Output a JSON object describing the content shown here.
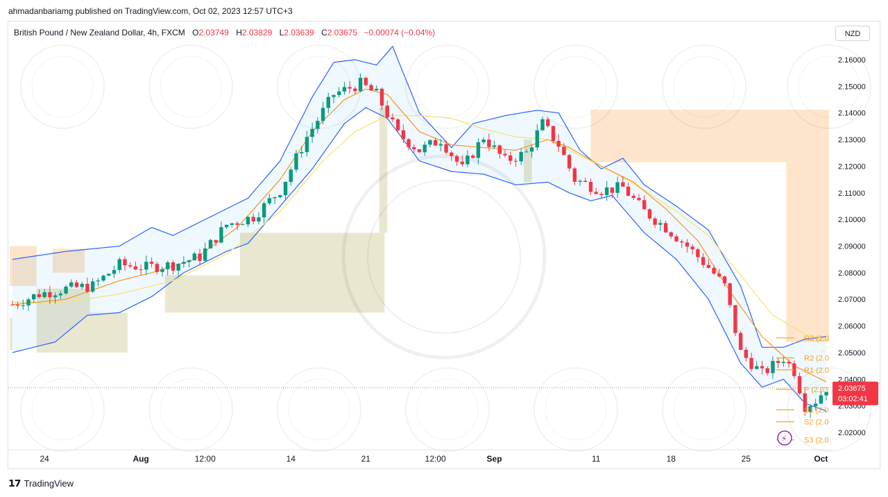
{
  "attribution": "ahmadanbariamg published on TradingView.com, Oct 02, 2023 12:57 UTC+3",
  "legend": {
    "symbol": "British Pound / New Zealand Dollar, 4h, FXCM",
    "o_label": "O",
    "o_value": "2.03749",
    "h_label": "H",
    "h_value": "2.03829",
    "l_label": "L",
    "l_value": "2.03639",
    "c_label": "C",
    "c_value": "2.03675",
    "change": "−0.00074 (−0.04%)"
  },
  "currency_button": "NZD",
  "footer": {
    "brand": "TradingView"
  },
  "colors": {
    "up": "#089981",
    "down": "#f23645",
    "band": "#2962ff",
    "ema": "#f7941d",
    "sma": "#f6e27a",
    "pivot": "#f7a21b",
    "zone_orange": "#fde0c2",
    "zone_olive": "#e5e3c8"
  },
  "price_tag": {
    "price": "2.03675",
    "countdown": "03:02:41"
  },
  "chart_data": {
    "type": "candlestick",
    "title": "British Pound / New Zealand Dollar, 4h, FXCM",
    "ylim": [
      2.012,
      2.168
    ],
    "y_ticks": [
      2.16,
      2.15,
      2.14,
      2.13,
      2.12,
      2.11,
      2.1,
      2.09,
      2.08,
      2.07,
      2.06,
      2.05,
      2.04,
      2.03,
      2.02
    ],
    "y_tick_labels": [
      "2.16000",
      "2.15000",
      "2.14000",
      "2.13000",
      "2.12000",
      "2.11000",
      "2.10000",
      "2.09000",
      "2.08000",
      "2.07000",
      "2.06000",
      "2.05000",
      "2.04000",
      "2.03000",
      "2.02000"
    ],
    "x_ticks": [
      {
        "label": "24",
        "i": 6
      },
      {
        "label": "Aug",
        "i": 24,
        "bold": true
      },
      {
        "label": "12:00",
        "i": 36
      },
      {
        "label": "14",
        "i": 52
      },
      {
        "label": "21",
        "i": 66
      },
      {
        "label": "12:00",
        "i": 79
      },
      {
        "label": "Sep",
        "i": 90,
        "bold": true
      },
      {
        "label": "11",
        "i": 109
      },
      {
        "label": "18",
        "i": 123
      },
      {
        "label": "25",
        "i": 137
      },
      {
        "label": "Oct",
        "i": 151,
        "bold": true
      }
    ],
    "price_path": [
      [
        0,
        2.068
      ],
      [
        5,
        2.072
      ],
      [
        10,
        2.074
      ],
      [
        15,
        2.075
      ],
      [
        20,
        2.083
      ],
      [
        25,
        2.082
      ],
      [
        30,
        2.083
      ],
      [
        35,
        2.086
      ],
      [
        40,
        2.098
      ],
      [
        45,
        2.101
      ],
      [
        50,
        2.111
      ],
      [
        55,
        2.131
      ],
      [
        60,
        2.147
      ],
      [
        65,
        2.151
      ],
      [
        68,
        2.147
      ],
      [
        72,
        2.132
      ],
      [
        76,
        2.126
      ],
      [
        80,
        2.13
      ],
      [
        84,
        2.119
      ],
      [
        88,
        2.131
      ],
      [
        92,
        2.122
      ],
      [
        96,
        2.125
      ],
      [
        99,
        2.136
      ],
      [
        102,
        2.128
      ],
      [
        105,
        2.115
      ],
      [
        110,
        2.111
      ],
      [
        114,
        2.112
      ],
      [
        118,
        2.103
      ],
      [
        122,
        2.097
      ],
      [
        126,
        2.09
      ],
      [
        130,
        2.082
      ],
      [
        133,
        2.075
      ],
      [
        136,
        2.05
      ],
      [
        140,
        2.042
      ],
      [
        144,
        2.048
      ],
      [
        146,
        2.043
      ],
      [
        148,
        2.03
      ],
      [
        150,
        2.032
      ],
      [
        152,
        2.0368
      ]
    ],
    "bollinger": {
      "upper": [
        [
          0,
          2.085
        ],
        [
          10,
          2.088
        ],
        [
          20,
          2.09
        ],
        [
          26,
          2.097
        ],
        [
          30,
          2.094
        ],
        [
          36,
          2.1
        ],
        [
          44,
          2.108
        ],
        [
          50,
          2.122
        ],
        [
          56,
          2.146
        ],
        [
          60,
          2.159
        ],
        [
          64,
          2.16
        ],
        [
          68,
          2.158
        ],
        [
          71,
          2.165
        ],
        [
          76,
          2.14
        ],
        [
          82,
          2.127
        ],
        [
          86,
          2.136
        ],
        [
          92,
          2.139
        ],
        [
          98,
          2.141
        ],
        [
          102,
          2.14
        ],
        [
          106,
          2.126
        ],
        [
          110,
          2.119
        ],
        [
          114,
          2.123
        ],
        [
          118,
          2.113
        ],
        [
          124,
          2.105
        ],
        [
          130,
          2.096
        ],
        [
          136,
          2.075
        ],
        [
          140,
          2.052
        ],
        [
          144,
          2.052
        ],
        [
          148,
          2.055
        ],
        [
          152,
          2.056
        ]
      ],
      "lower": [
        [
          0,
          2.05
        ],
        [
          8,
          2.054
        ],
        [
          14,
          2.064
        ],
        [
          20,
          2.065
        ],
        [
          26,
          2.071
        ],
        [
          32,
          2.08
        ],
        [
          40,
          2.088
        ],
        [
          44,
          2.091
        ],
        [
          50,
          2.105
        ],
        [
          56,
          2.119
        ],
        [
          62,
          2.136
        ],
        [
          66,
          2.142
        ],
        [
          70,
          2.138
        ],
        [
          76,
          2.122
        ],
        [
          82,
          2.118
        ],
        [
          88,
          2.117
        ],
        [
          94,
          2.113
        ],
        [
          100,
          2.114
        ],
        [
          104,
          2.11
        ],
        [
          108,
          2.107
        ],
        [
          112,
          2.109
        ],
        [
          118,
          2.095
        ],
        [
          124,
          2.085
        ],
        [
          130,
          2.07
        ],
        [
          136,
          2.046
        ],
        [
          140,
          2.037
        ],
        [
          144,
          2.04
        ],
        [
          148,
          2.031
        ],
        [
          152,
          2.028
        ]
      ]
    },
    "ema": [
      [
        0,
        2.068
      ],
      [
        10,
        2.07
      ],
      [
        20,
        2.077
      ],
      [
        26,
        2.08
      ],
      [
        34,
        2.085
      ],
      [
        42,
        2.097
      ],
      [
        50,
        2.115
      ],
      [
        56,
        2.133
      ],
      [
        62,
        2.145
      ],
      [
        66,
        2.149
      ],
      [
        70,
        2.147
      ],
      [
        76,
        2.133
      ],
      [
        82,
        2.128
      ],
      [
        88,
        2.127
      ],
      [
        94,
        2.126
      ],
      [
        100,
        2.13
      ],
      [
        104,
        2.127
      ],
      [
        110,
        2.12
      ],
      [
        116,
        2.114
      ],
      [
        122,
        2.104
      ],
      [
        128,
        2.092
      ],
      [
        134,
        2.073
      ],
      [
        140,
        2.056
      ],
      [
        146,
        2.045
      ],
      [
        152,
        2.039
      ]
    ],
    "sma": [
      [
        0,
        2.069
      ],
      [
        10,
        2.069
      ],
      [
        20,
        2.072
      ],
      [
        30,
        2.077
      ],
      [
        40,
        2.087
      ],
      [
        50,
        2.103
      ],
      [
        58,
        2.122
      ],
      [
        64,
        2.133
      ],
      [
        70,
        2.139
      ],
      [
        76,
        2.139
      ],
      [
        82,
        2.138
      ],
      [
        88,
        2.134
      ],
      [
        94,
        2.131
      ],
      [
        100,
        2.13
      ],
      [
        106,
        2.124
      ],
      [
        112,
        2.118
      ],
      [
        118,
        2.111
      ],
      [
        124,
        2.103
      ],
      [
        130,
        2.094
      ],
      [
        136,
        2.079
      ],
      [
        142,
        2.064
      ],
      [
        148,
        2.057
      ],
      [
        152,
        2.055
      ]
    ],
    "pivots": [
      {
        "label": "R3 (2.0",
        "price": 2.0555
      },
      {
        "label": "R2 (2.0",
        "price": 2.048
      },
      {
        "label": "R1 (2.0",
        "price": 2.0435
      },
      {
        "label": "P (2.03",
        "price": 2.0362
      },
      {
        "label": "S1 (2.0",
        "price": 2.0285
      },
      {
        "label": "S2 (2.0",
        "price": 2.024
      },
      {
        "label": "S3 (2.0",
        "price": 2.0172
      }
    ]
  }
}
